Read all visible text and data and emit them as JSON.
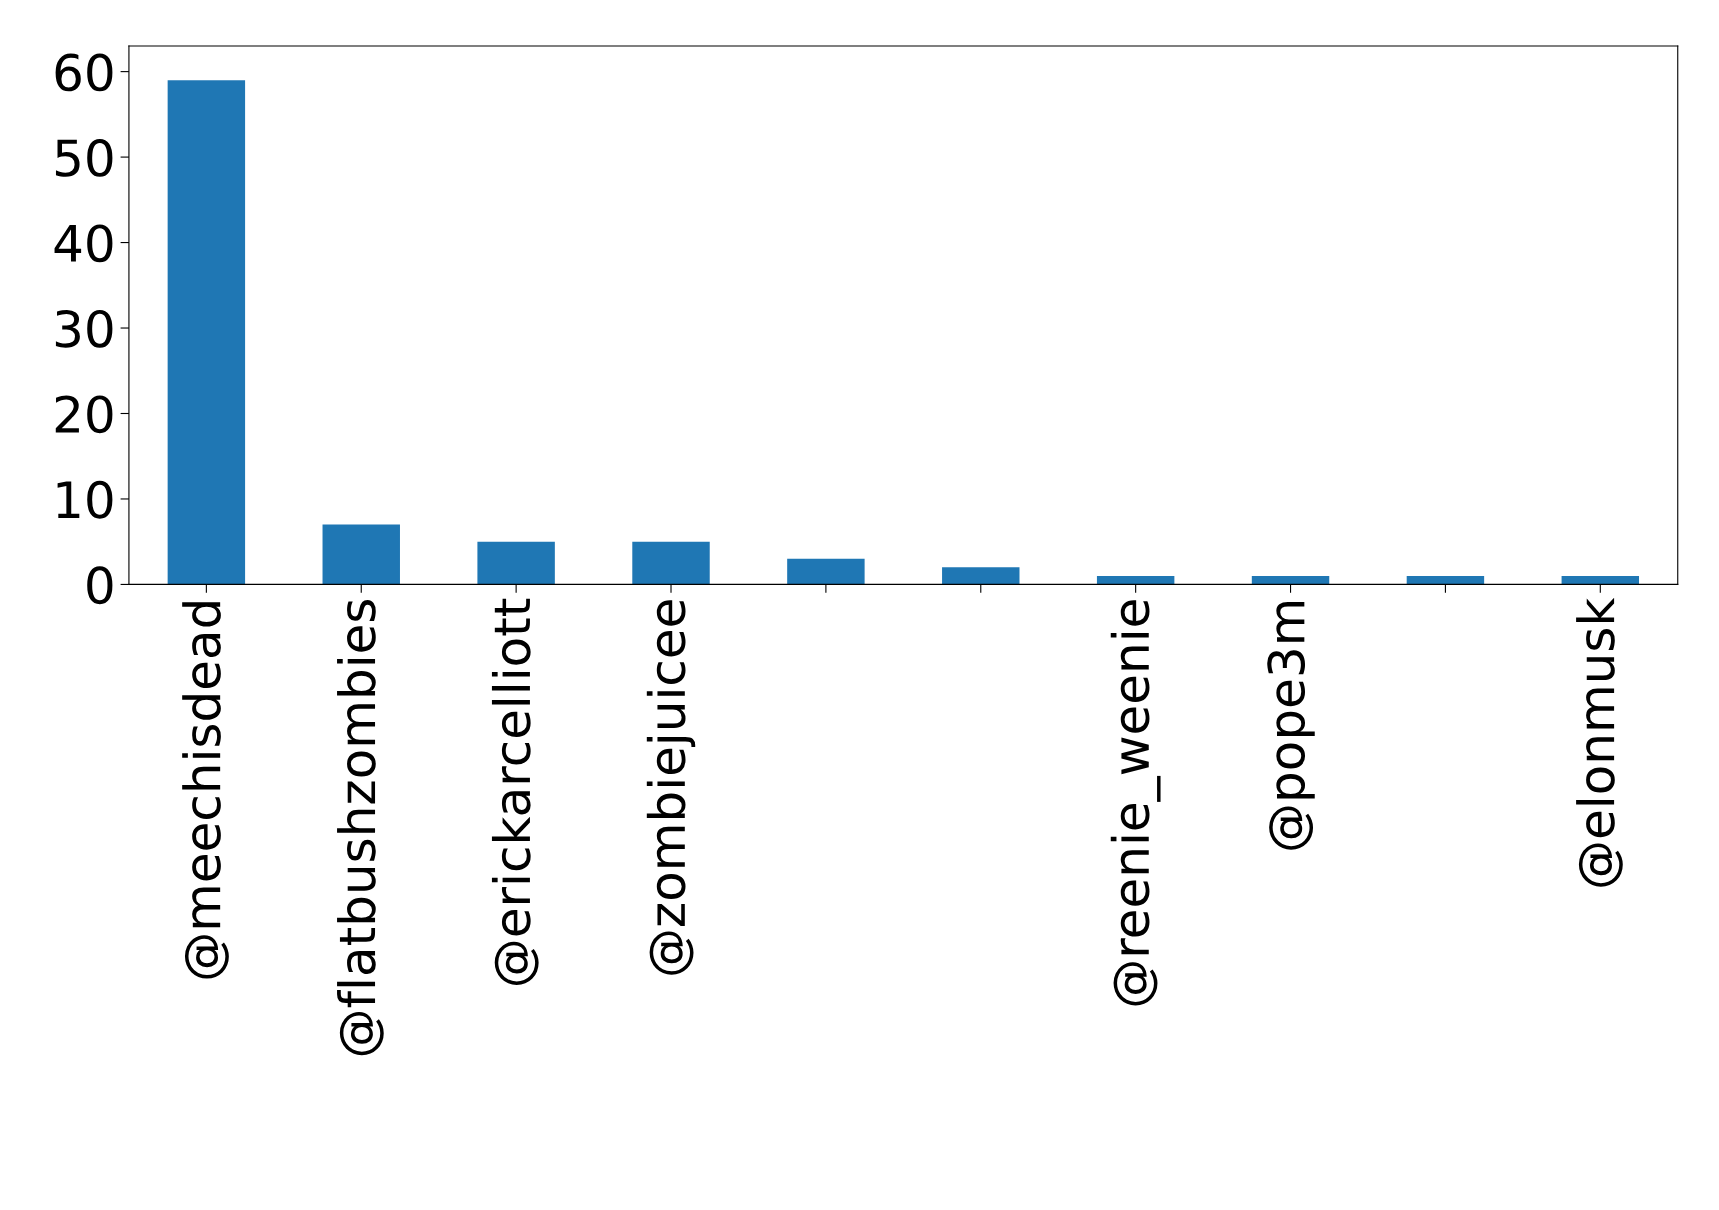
{
  "chart_data": {
    "type": "bar",
    "categories": [
      "@meechisdead",
      "@flatbushzombies",
      "@erickarcelliott",
      "@zombiejuicee",
      null,
      null,
      "@reenie_weenie",
      "@pope3m",
      null,
      "@elonmusk"
    ],
    "values": [
      59,
      7,
      5,
      5,
      3,
      2,
      1,
      1,
      1,
      1
    ],
    "color": "#1f77b4",
    "ylim": [
      0,
      63
    ],
    "yticks": [
      0,
      10,
      20,
      30,
      40,
      50,
      60
    ],
    "grid": false,
    "legend": false
  }
}
